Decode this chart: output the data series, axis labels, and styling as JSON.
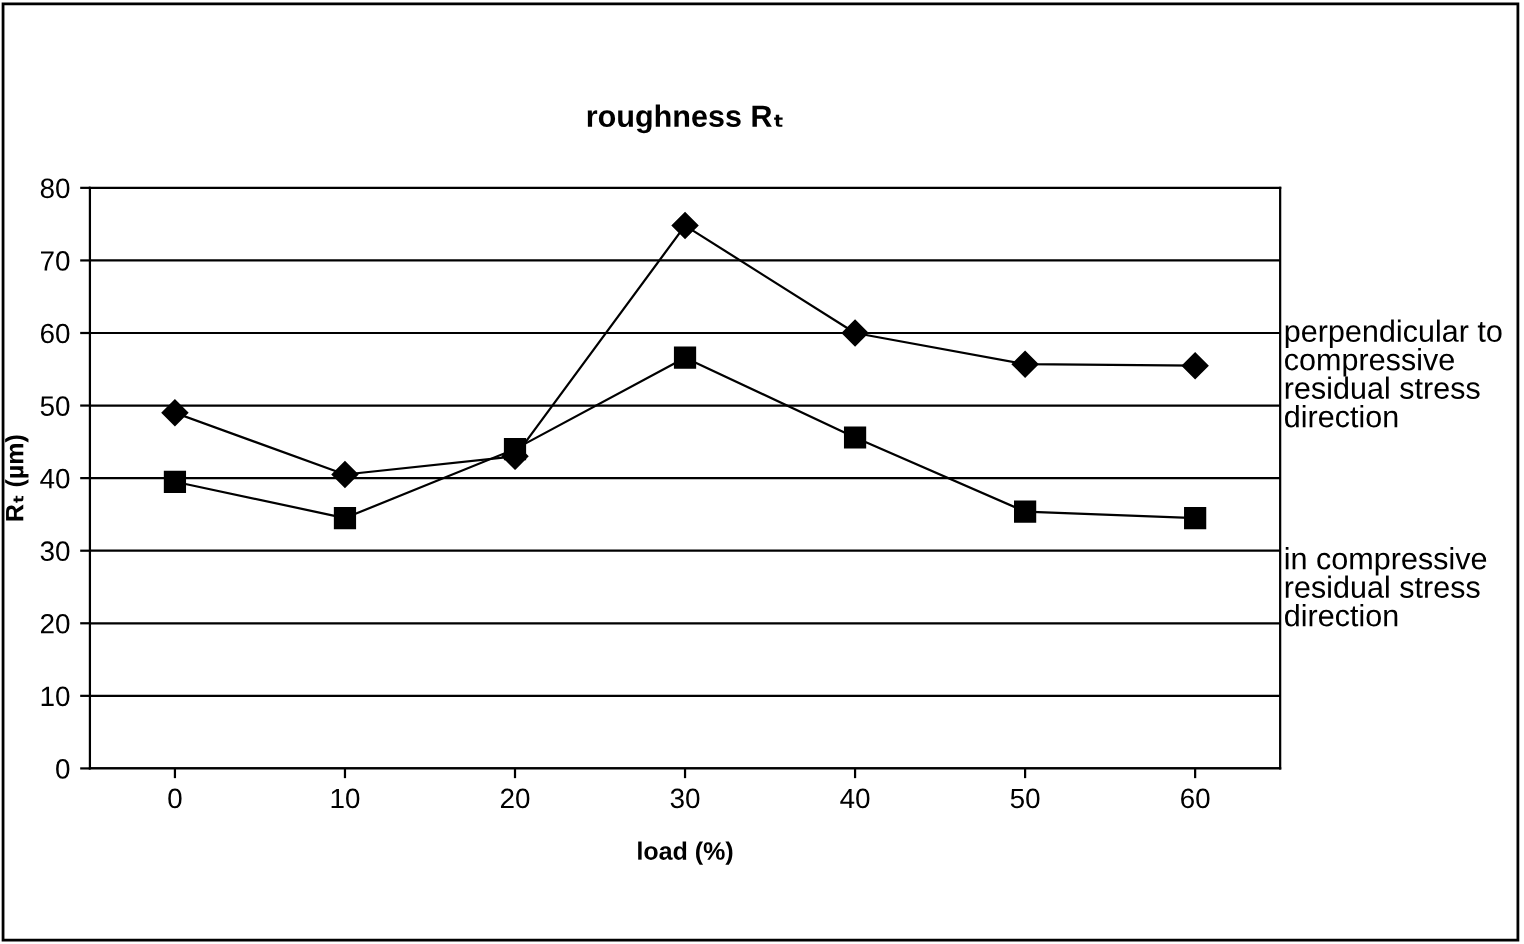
{
  "chart_data": {
    "type": "line",
    "title": "roughness Rₜ",
    "xlabel": "load (%)",
    "ylabel": "Rₜ (µm)",
    "categories": [
      "0",
      "10",
      "20",
      "30",
      "40",
      "50",
      "60"
    ],
    "series": [
      {
        "name": "perpendicular to\ncompressive\nresidual stress\ndirection",
        "color": "#000000",
        "marker": "diamond",
        "values": [
          49,
          40.5,
          43,
          74.8,
          60,
          55.7,
          55.5
        ]
      },
      {
        "name": "in compressive\nresidual stress\ndirection",
        "color": "#000000",
        "marker": "square",
        "values": [
          39.5,
          34.5,
          44,
          56.6,
          45.6,
          35.4,
          34.5
        ]
      }
    ],
    "ylim": [
      0,
      80
    ],
    "yticks": [
      0,
      10,
      20,
      30,
      40,
      50,
      60,
      70,
      80
    ],
    "grid": "y",
    "legend": "right",
    "line_style": "solid"
  }
}
